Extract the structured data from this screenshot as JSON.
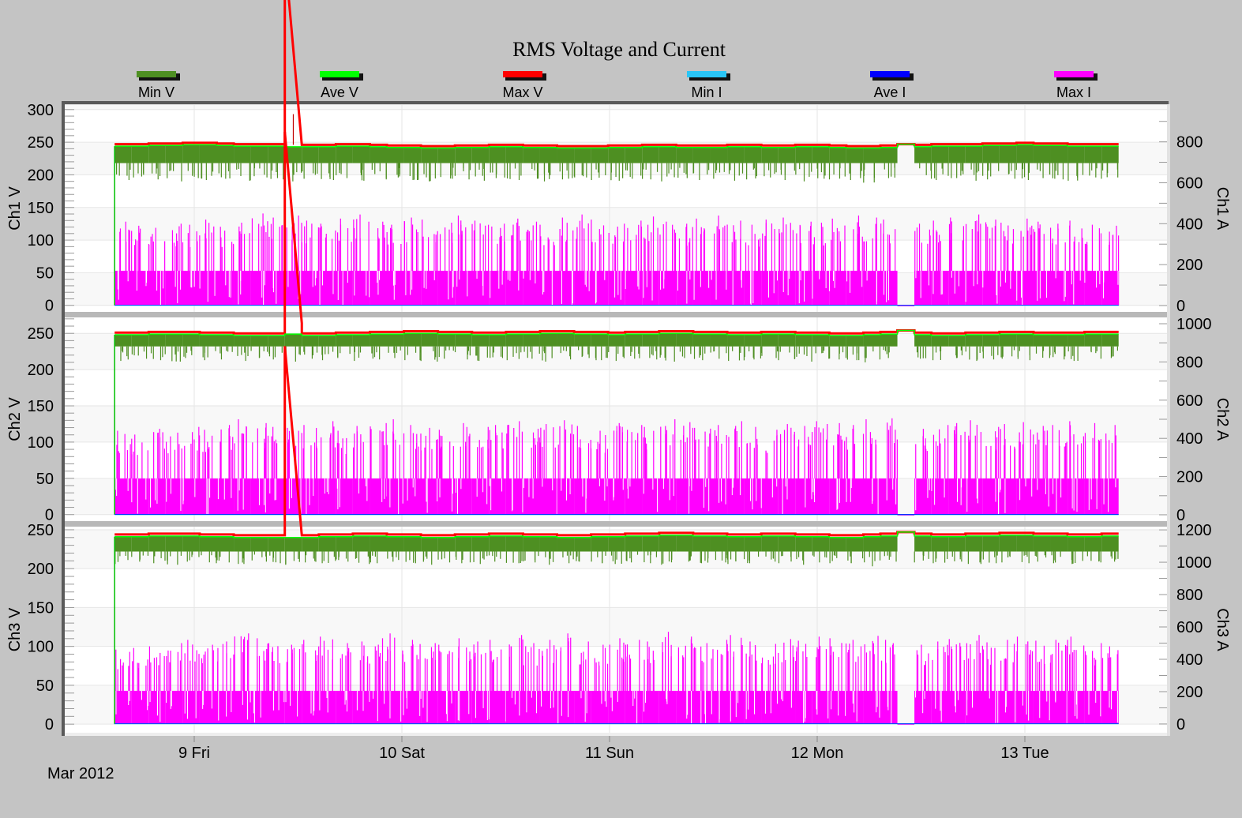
{
  "chart_data": {
    "type": "bar",
    "title": "RMS Voltage and Current",
    "legend": {
      "placement": "top",
      "entries": [
        {
          "name": "Min V",
          "color": "#4e8f22"
        },
        {
          "name": "Ave V",
          "color": "#00ff00"
        },
        {
          "name": "Max V",
          "color": "#ff0000"
        },
        {
          "name": "Min I",
          "color": "#29c5f6"
        },
        {
          "name": "Ave I",
          "color": "#0000ff"
        },
        {
          "name": "Max I",
          "color": "#ff00ff"
        }
      ]
    },
    "x": {
      "start": "2012-03-08T14:48",
      "interval_minutes": 118,
      "tick_labels": [
        "9 Fri",
        "10 Sat",
        "11 Sun",
        "12 Mon",
        "13 Tue"
      ],
      "tick_dates": [
        "2012-03-09",
        "2012-03-10",
        "2012-03-11",
        "2012-03-12",
        "2012-03-13"
      ],
      "period_label": "Mar 2012",
      "grid": true
    },
    "panels": [
      {
        "ylabel_left": "Ch1 V",
        "ylabel_right": "Ch1 A",
        "ylim_left": [
          -10,
          307
        ],
        "ylim_right": [
          -31,
          980
        ],
        "yticks_left": [
          0,
          50,
          100,
          150,
          200,
          250,
          300
        ],
        "yticks_right": [
          0,
          200,
          400,
          600,
          800
        ],
        "min_v_typical": 218,
        "max_i_typical": 170,
        "ave_i": 2,
        "min_i": 0,
        "max_v": [
          247,
          247,
          248,
          248,
          249,
          249,
          248,
          247,
          247,
          247,
          293,
          246,
          246,
          247,
          247,
          246,
          245,
          245,
          244,
          244,
          245,
          245,
          246,
          246,
          245,
          245,
          244,
          244,
          244,
          245,
          245,
          246,
          246,
          245,
          245,
          245,
          246,
          246,
          245,
          245,
          246,
          246,
          245,
          244,
          244,
          245,
          247,
          246,
          247,
          247,
          247,
          248,
          248,
          249,
          248,
          248,
          247,
          247,
          247
        ],
        "ave_v": [
          244,
          244,
          245,
          245,
          246,
          246,
          245,
          244,
          244,
          244,
          243,
          243,
          243,
          244,
          244,
          243,
          242,
          242,
          241,
          241,
          242,
          242,
          243,
          243,
          242,
          242,
          241,
          241,
          241,
          242,
          242,
          243,
          243,
          242,
          242,
          242,
          243,
          243,
          242,
          242,
          243,
          243,
          242,
          241,
          241,
          242,
          247,
          243,
          244,
          244,
          244,
          245,
          245,
          246,
          245,
          245,
          244,
          244,
          244
        ],
        "min_v": [
          192,
          196,
          193,
          190,
          195,
          192,
          194,
          191,
          196,
          193,
          190,
          194,
          192,
          195,
          191,
          193,
          196,
          192,
          190,
          194,
          193,
          191,
          195,
          192,
          194,
          190,
          193,
          196,
          192,
          191,
          194,
          193,
          190,
          195,
          192,
          194,
          191,
          193,
          196,
          192,
          190,
          194,
          193,
          192,
          188,
          195,
          246,
          194,
          192,
          195,
          191,
          193,
          194,
          192,
          195,
          193,
          191,
          194,
          196
        ],
        "max_i": [
          410,
          390,
          380,
          400,
          395,
          420,
          385,
          405,
          450,
          430,
          440,
          415,
          400,
          425,
          445,
          410,
          395,
          430,
          420,
          405,
          440,
          415,
          400,
          425,
          410,
          395,
          430,
          445,
          420,
          400,
          415,
          435,
          410,
          400,
          425,
          440,
          415,
          395,
          420,
          430,
          410,
          405,
          425,
          440,
          430,
          420,
          0,
          400,
          415,
          430,
          445,
          420,
          405,
          425,
          410,
          400,
          415,
          395,
          390
        ]
      },
      {
        "ylabel_left": "Ch2 V",
        "ylabel_right": "Ch2 A",
        "ylim_left": [
          -9,
          272
        ],
        "ylim_right": [
          -33,
          1033
        ],
        "yticks_left": [
          0,
          50,
          100,
          150,
          200,
          250
        ],
        "yticks_right": [
          0,
          200,
          400,
          600,
          800,
          1000
        ],
        "min_v_typical": 232,
        "max_i_typical": 190,
        "ave_i": 2,
        "min_i": 0,
        "max_v": [
          251,
          251,
          252,
          252,
          252,
          251,
          251,
          250,
          250,
          250,
          264,
          250,
          250,
          251,
          251,
          252,
          252,
          253,
          253,
          252,
          252,
          251,
          251,
          252,
          252,
          253,
          253,
          252,
          252,
          251,
          252,
          252,
          253,
          253,
          252,
          252,
          251,
          251,
          252,
          252,
          251,
          251,
          250,
          250,
          251,
          252,
          254,
          251,
          250,
          250,
          251,
          251,
          252,
          252,
          251,
          251,
          251,
          252,
          252
        ],
        "ave_v": [
          248,
          248,
          249,
          249,
          249,
          248,
          248,
          247,
          247,
          247,
          249,
          247,
          247,
          248,
          248,
          249,
          249,
          250,
          250,
          249,
          249,
          248,
          248,
          249,
          249,
          250,
          250,
          249,
          249,
          248,
          249,
          249,
          250,
          250,
          249,
          249,
          248,
          248,
          249,
          249,
          248,
          248,
          247,
          247,
          248,
          249,
          254,
          248,
          247,
          247,
          248,
          248,
          249,
          249,
          248,
          248,
          248,
          249,
          249
        ],
        "min_v": [
          212,
          215,
          213,
          211,
          216,
          213,
          214,
          212,
          216,
          214,
          211,
          215,
          213,
          216,
          212,
          214,
          216,
          213,
          211,
          215,
          214,
          212,
          216,
          213,
          215,
          211,
          214,
          216,
          213,
          212,
          215,
          214,
          211,
          216,
          213,
          215,
          212,
          214,
          216,
          213,
          211,
          215,
          214,
          213,
          210,
          216,
          254,
          215,
          213,
          216,
          212,
          214,
          215,
          213,
          216,
          214,
          212,
          215,
          216
        ],
        "max_i": [
          440,
          420,
          450,
          430,
          460,
          445,
          470,
          500,
          480,
          460,
          455,
          470,
          490,
          440,
          465,
          480,
          500,
          470,
          455,
          445,
          480,
          460,
          470,
          490,
          450,
          475,
          495,
          465,
          440,
          480,
          470,
          460,
          500,
          485,
          455,
          470,
          490,
          460,
          445,
          475,
          465,
          490,
          480,
          470,
          500,
          505,
          0,
          450,
          470,
          480,
          495,
          460,
          475,
          485,
          465,
          470,
          490,
          480,
          470
        ]
      },
      {
        "ylabel_left": "Ch3 V",
        "ylabel_right": "Ch3 A",
        "ylim_left": [
          -11,
          254
        ],
        "ylim_right": [
          -54,
          1220
        ],
        "yticks_left": [
          0,
          50,
          100,
          150,
          200,
          250
        ],
        "yticks_right": [
          0,
          200,
          400,
          600,
          800,
          1000,
          1200
        ],
        "min_v_typical": 222,
        "max_i_typical": 205,
        "ave_i": 2,
        "min_i": 0,
        "max_v": [
          244,
          244,
          245,
          245,
          245,
          244,
          244,
          243,
          243,
          243,
          243,
          243,
          244,
          244,
          245,
          245,
          244,
          244,
          243,
          243,
          244,
          244,
          245,
          245,
          244,
          244,
          243,
          243,
          244,
          244,
          245,
          245,
          246,
          246,
          245,
          245,
          244,
          244,
          245,
          245,
          244,
          244,
          243,
          243,
          244,
          245,
          247,
          245,
          244,
          244,
          245,
          245,
          246,
          246,
          245,
          245,
          244,
          244,
          245
        ],
        "ave_v": [
          241,
          241,
          242,
          242,
          242,
          241,
          241,
          240,
          240,
          240,
          240,
          240,
          241,
          241,
          242,
          242,
          241,
          241,
          240,
          240,
          241,
          241,
          242,
          242,
          241,
          241,
          240,
          240,
          241,
          241,
          242,
          242,
          243,
          243,
          242,
          242,
          241,
          241,
          242,
          242,
          241,
          241,
          240,
          240,
          241,
          242,
          247,
          242,
          241,
          241,
          242,
          242,
          243,
          243,
          242,
          242,
          241,
          241,
          242
        ],
        "min_v": [
          206,
          209,
          207,
          205,
          209,
          207,
          208,
          206,
          209,
          207,
          205,
          208,
          207,
          209,
          206,
          207,
          209,
          207,
          205,
          208,
          207,
          206,
          209,
          207,
          208,
          205,
          207,
          209,
          207,
          206,
          208,
          207,
          205,
          209,
          207,
          208,
          206,
          207,
          209,
          207,
          205,
          208,
          207,
          207,
          203,
          209,
          247,
          208,
          207,
          209,
          206,
          207,
          208,
          207,
          209,
          207,
          206,
          208,
          209
        ],
        "max_i": [
          460,
          470,
          480,
          500,
          520,
          490,
          510,
          560,
          530,
          500,
          490,
          520,
          540,
          500,
          510,
          530,
          560,
          520,
          500,
          490,
          530,
          510,
          520,
          550,
          500,
          520,
          560,
          510,
          490,
          530,
          520,
          510,
          570,
          540,
          500,
          520,
          550,
          510,
          495,
          525,
          515,
          540,
          530,
          520,
          545,
          520,
          0,
          490,
          510,
          525,
          550,
          505,
          520,
          540,
          515,
          520,
          540,
          500,
          480
        ]
      }
    ]
  }
}
